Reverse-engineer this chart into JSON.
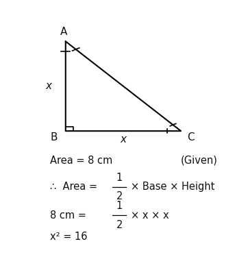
{
  "triangle": {
    "A": [
      0.18,
      0.92
    ],
    "B": [
      0.18,
      0.1
    ],
    "C": [
      0.78,
      0.1
    ]
  },
  "bg_color": "#ffffff",
  "text_color": "#111111",
  "label_A": "A",
  "label_B": "B",
  "label_C": "C",
  "label_x_side": "x",
  "label_x_base": "x",
  "sq_size": 0.04,
  "line1": "Area = 8 cm",
  "line1_right": "(Given)",
  "line2_symbol": "∴",
  "line2_text1": "Area = ",
  "line2_frac": "1/2",
  "line2_text2": "× Base × Height",
  "line3_text1": "8 cm = ",
  "line3_frac": "1/2",
  "line3_text2": "× x × x",
  "line4": "x² = 16",
  "figsize": [
    3.62,
    3.97
  ],
  "dpi": 100
}
